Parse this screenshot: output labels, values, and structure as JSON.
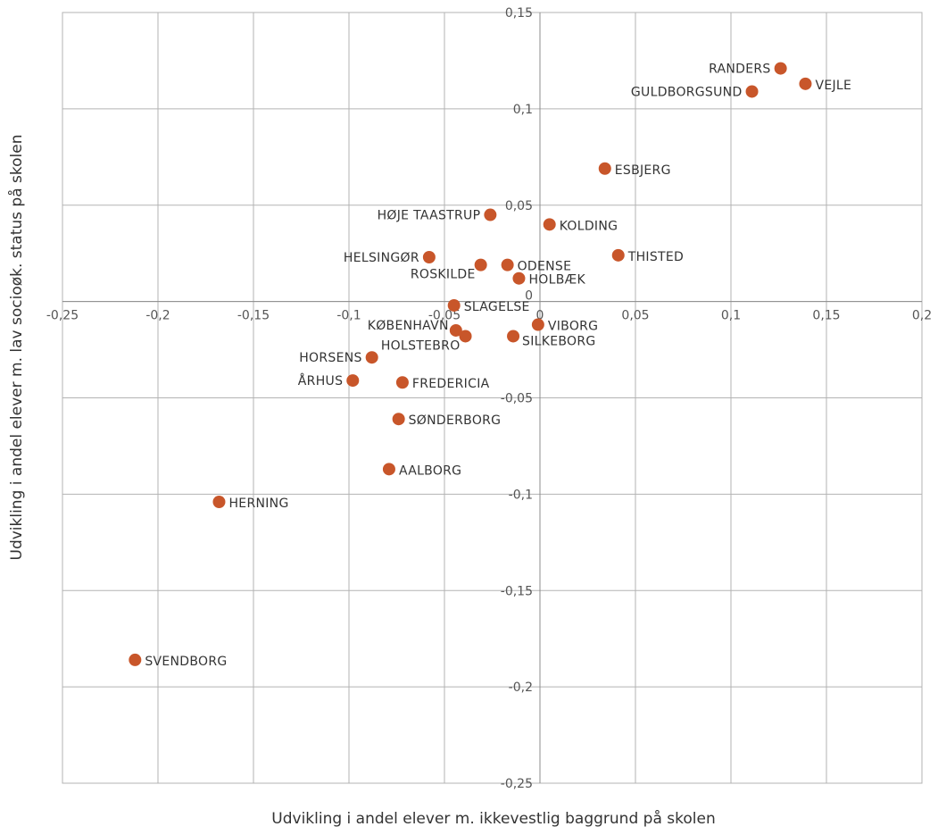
{
  "chart_data": {
    "type": "scatter",
    "xlabel": "Udvikling i andel elever m. ikkevestlig baggrund på skolen",
    "ylabel": "Udvikling i andel elever m. lav socioøk. status på skolen",
    "xlim": [
      -0.25,
      0.2
    ],
    "ylim": [
      -0.25,
      0.15
    ],
    "x_ticks": [
      {
        "value": -0.25,
        "label": "-0,25"
      },
      {
        "value": -0.2,
        "label": "-0,2"
      },
      {
        "value": -0.15,
        "label": "-0,15"
      },
      {
        "value": -0.1,
        "label": "-0,1"
      },
      {
        "value": -0.05,
        "label": "-0,05"
      },
      {
        "value": 0,
        "label": "0"
      },
      {
        "value": 0.05,
        "label": "0,05"
      },
      {
        "value": 0.1,
        "label": "0,1"
      },
      {
        "value": 0.15,
        "label": "0,15"
      },
      {
        "value": 0.2,
        "label": "0,2"
      }
    ],
    "y_ticks": [
      {
        "value": 0.15,
        "label": "0,15"
      },
      {
        "value": 0.1,
        "label": "0,1"
      },
      {
        "value": 0.05,
        "label": "0,05"
      },
      {
        "value": 0,
        "label": "0"
      },
      {
        "value": -0.05,
        "label": "-0,05"
      },
      {
        "value": -0.1,
        "label": "-0,1"
      },
      {
        "value": -0.15,
        "label": "-0,15"
      },
      {
        "value": -0.2,
        "label": "-0,2"
      },
      {
        "value": -0.25,
        "label": "-0,25"
      }
    ],
    "grid": true,
    "marker_color": "#c8562a",
    "points": [
      {
        "label": "RANDERS",
        "x": 0.126,
        "y": 0.121,
        "label_side": "left"
      },
      {
        "label": "VEJLE",
        "x": 0.139,
        "y": 0.113,
        "label_side": "right"
      },
      {
        "label": "GULDBORGSUND",
        "x": 0.111,
        "y": 0.109,
        "label_side": "left"
      },
      {
        "label": "ESBJERG",
        "x": 0.034,
        "y": 0.069,
        "label_side": "right"
      },
      {
        "label": "HØJE TAASTRUP",
        "x": -0.026,
        "y": 0.045,
        "label_side": "left"
      },
      {
        "label": "KOLDING",
        "x": 0.005,
        "y": 0.04,
        "label_side": "right"
      },
      {
        "label": "THISTED",
        "x": 0.041,
        "y": 0.024,
        "label_side": "right"
      },
      {
        "label": "HELSINGØR",
        "x": -0.058,
        "y": 0.023,
        "label_side": "left"
      },
      {
        "label": "ROSKILDE",
        "x": -0.031,
        "y": 0.019,
        "label_side": "left-below"
      },
      {
        "label": "ODENSE",
        "x": -0.017,
        "y": 0.019,
        "label_side": "right"
      },
      {
        "label": "HOLBÆK",
        "x": -0.011,
        "y": 0.012,
        "label_side": "right"
      },
      {
        "label": "SLAGELSE",
        "x": -0.045,
        "y": -0.002,
        "label_side": "right"
      },
      {
        "label": "VIBORG",
        "x": -0.001,
        "y": -0.012,
        "label_side": "right"
      },
      {
        "label": "KØBENHAVN",
        "x": -0.044,
        "y": -0.015,
        "label_side": "left-above"
      },
      {
        "label": "HOLSTEBRO",
        "x": -0.039,
        "y": -0.018,
        "label_side": "left-below"
      },
      {
        "label": "SILKEBORG",
        "x": -0.014,
        "y": -0.018,
        "label_side": "right-below"
      },
      {
        "label": "HORSENS",
        "x": -0.088,
        "y": -0.029,
        "label_side": "left"
      },
      {
        "label": "ÅRHUS",
        "x": -0.098,
        "y": -0.041,
        "label_side": "left"
      },
      {
        "label": "FREDERICIA",
        "x": -0.072,
        "y": -0.042,
        "label_side": "right"
      },
      {
        "label": "SØNDERBORG",
        "x": -0.074,
        "y": -0.061,
        "label_side": "right"
      },
      {
        "label": "AALBORG",
        "x": -0.079,
        "y": -0.087,
        "label_side": "right"
      },
      {
        "label": "HERNING",
        "x": -0.168,
        "y": -0.104,
        "label_side": "right"
      },
      {
        "label": "SVENDBORG",
        "x": -0.212,
        "y": -0.186,
        "label_side": "right"
      }
    ]
  }
}
